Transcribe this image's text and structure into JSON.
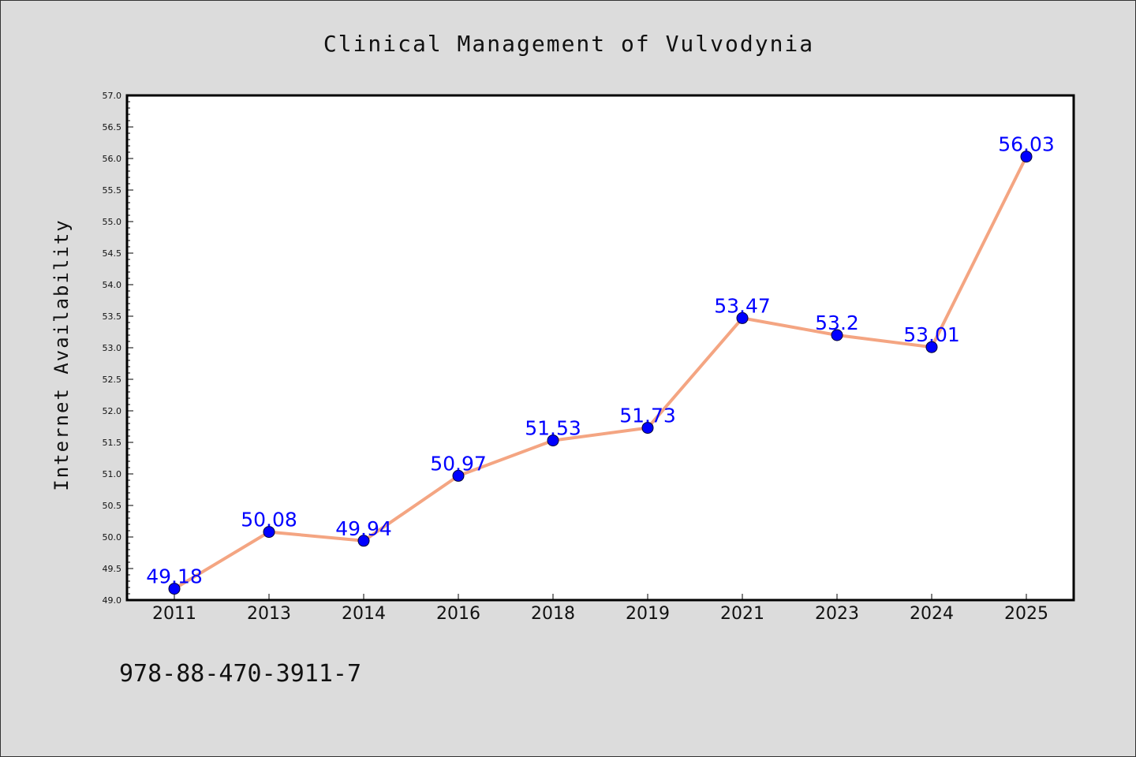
{
  "chart_data": {
    "type": "line",
    "title": "Clinical Management of Vulvodynia",
    "xlabel": "",
    "ylabel": "Internet Availability",
    "categories": [
      "2011",
      "2013",
      "2014",
      "2016",
      "2018",
      "2019",
      "2021",
      "2023",
      "2024",
      "2025"
    ],
    "series": [
      {
        "values": [
          49.18,
          50.08,
          49.94,
          50.97,
          51.53,
          51.73,
          53.47,
          53.2,
          53.01,
          56.03
        ],
        "labels": [
          "49.18",
          "50.08",
          "49.94",
          "50.97",
          "51.53",
          "51.73",
          "53.47",
          "53.2",
          "53.01",
          "56.03"
        ]
      }
    ],
    "ylim": [
      49.0,
      57.0
    ],
    "yticks": [
      "49.0",
      "49.5",
      "50.0",
      "50.5",
      "51.0",
      "51.5",
      "52.0",
      "52.5",
      "53.0",
      "53.5",
      "54.0",
      "54.5",
      "55.0",
      "55.5",
      "56.0",
      "56.5",
      "57.0"
    ],
    "grid": false,
    "legend": "none",
    "colors": {
      "line": "#f4a582",
      "marker": "#0000ff",
      "label": "#0000ff",
      "background": "#dcdcdc",
      "plot_background": "#ffffff"
    }
  },
  "footnote": "978-88-470-3911-7"
}
